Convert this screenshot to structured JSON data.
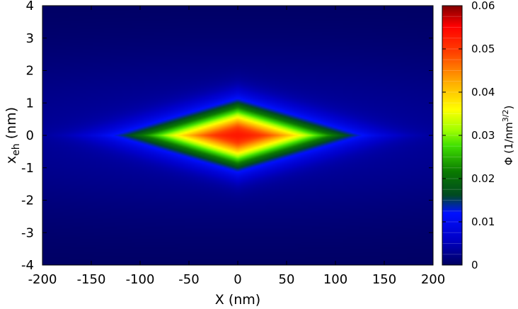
{
  "chart_data": {
    "type": "heatmap",
    "title": "",
    "x": {
      "label": "X (nm)",
      "range": [
        -200,
        200
      ],
      "ticks": [
        -200,
        -150,
        -100,
        -50,
        0,
        50,
        100,
        150,
        200
      ],
      "tick_labels": [
        "-200",
        "-150",
        "-100",
        "-50",
        "0",
        "50",
        "100",
        "150",
        "200"
      ]
    },
    "y": {
      "label_main": "x",
      "label_sub": "eh",
      "label_unit": " (nm)",
      "range": [
        -4,
        4
      ],
      "ticks": [
        -4,
        -3,
        -2,
        -1,
        0,
        1,
        2,
        3,
        4
      ],
      "tick_labels": [
        "-4",
        "-3",
        "-2",
        "-1",
        "0",
        "1",
        "2",
        "3",
        "4"
      ]
    },
    "colorbar": {
      "label_prefix": "Φ  (1/nm",
      "label_sup": "3/2",
      "label_suffix": ")",
      "range": [
        0,
        0.06
      ],
      "ticks": [
        0,
        0.01,
        0.02,
        0.03,
        0.04,
        0.05,
        0.06
      ],
      "tick_labels": [
        "0",
        "0.01",
        "0.02",
        "0.03",
        "0.04",
        "0.05",
        "0.06"
      ],
      "colormap": [
        "#000080",
        "#0000ff",
        "#006400",
        "#00ff00",
        "#ffff00",
        "#ff8000",
        "#ff0000",
        "#800000"
      ]
    },
    "field": {
      "description_values": "peak at (0,0)",
      "peak_value": 0.06,
      "peak_x": 0,
      "peak_y": 0,
      "x_halfwidth_at_0.03": 70,
      "y_halfwidth_at_0.03": 0.55,
      "y_extent_at_0.01_center": 1.8,
      "x_extent_at_0.02": 160
    },
    "grid": false,
    "legend": "colorbar-right"
  }
}
